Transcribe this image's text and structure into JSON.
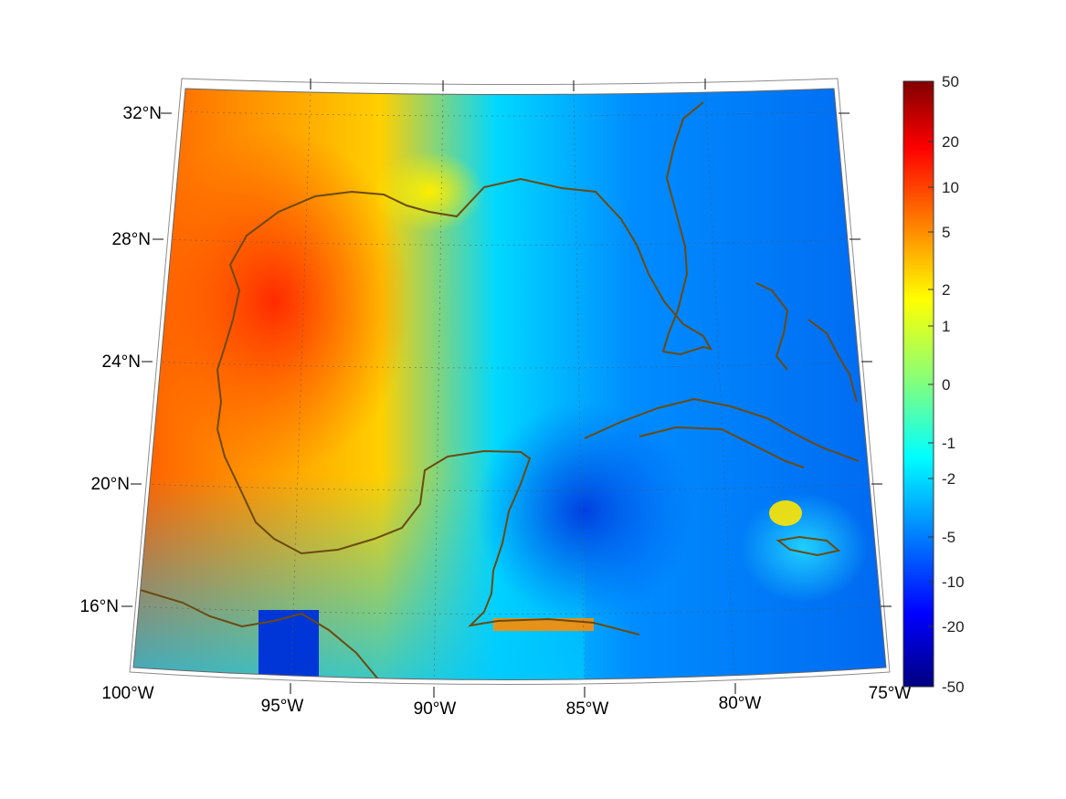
{
  "map": {
    "projection": "conic",
    "lat_ticks": [
      "32°N",
      "28°N",
      "24°N",
      "20°N",
      "16°N"
    ],
    "lon_ticks": [
      "100°W",
      "95°W",
      "90°W",
      "85°W",
      "80°W",
      "75°W"
    ],
    "coastline_color": "#6b4a10",
    "grid": "dotted"
  },
  "colorbar": {
    "colormap": "jet",
    "ticks": [
      "50",
      "20",
      "10",
      "5",
      "2",
      "1",
      "0",
      "-1",
      "-2",
      "-5",
      "-10",
      "-20",
      "-50"
    ]
  }
}
